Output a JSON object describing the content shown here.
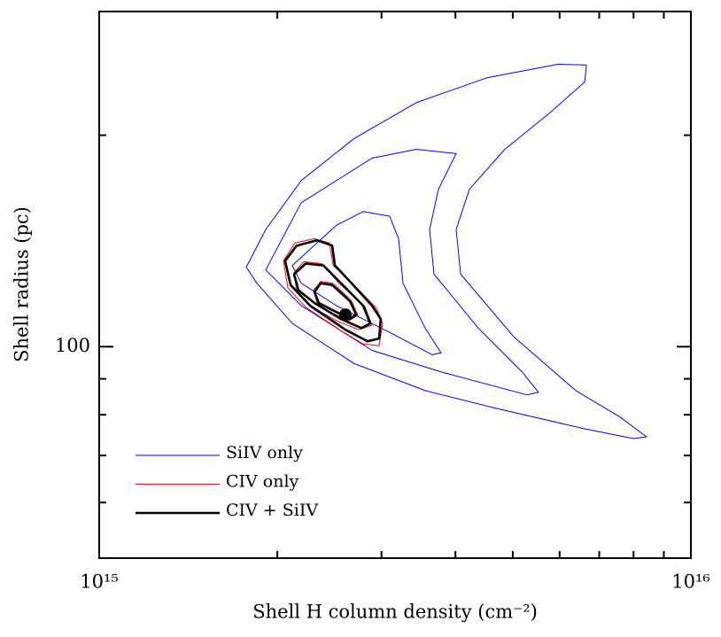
{
  "chart_data": {
    "type": "contour",
    "xlabel": "Shell H column density (cm⁻²)",
    "ylabel": "Shell radius (pc)",
    "log_x": true,
    "log_y": true,
    "xlim": [
      1000000000000000.0,
      1e+16
    ],
    "ylim": [
      50,
      300
    ],
    "xticks": [
      {
        "value": 1000000000000000.0,
        "label": "10¹⁵"
      },
      {
        "value": 1e+16,
        "label": "10¹⁶"
      }
    ],
    "xminorticks": [
      2000000000000000.0,
      3000000000000000.0,
      4000000000000000.0,
      5000000000000000.0,
      6000000000000000.0,
      7000000000000000.0,
      8000000000000000.0,
      9000000000000000.0
    ],
    "yticks": [
      100
    ],
    "yminorticks": [
      60,
      70,
      80,
      90,
      200
    ],
    "legend": "lower left",
    "best_fit": {
      "x": 2607000000000000.0,
      "y": 111.1,
      "color": "#000000"
    },
    "series": [
      {
        "name": "SiIV only",
        "color": "#0000ff",
        "width": 1,
        "contours": [
          {
            "x": [
              1773000000000000.0,
              1912000000000000.0,
              2195000000000000.0,
              2698000000000000.0,
              3435000000000000.0,
              4525000000000000.0,
              5963000000000000.0,
              6660000000000000.0,
              6614000000000000.0,
              5761000000000000.0,
              4849000000000000.0,
              4223000000000000.0,
              4012000000000000.0,
              4082000000000000.0,
              5019000000000000.0,
              6390000000000000.0,
              7591000000000000.0,
              8417000000000000.0,
              7994000000000000.0,
              6614000000000000.0,
              4685000000000000.0,
              3556000000000000.0,
              2698000000000000.0,
              2120000000000000.0,
              1847000000000000.0
            ],
            "y": [
              129.8,
              146.8,
              172.4,
              197.9,
              222.5,
              241.5,
              252.4,
              251.7,
              238.1,
              214.8,
              191.0,
              167.5,
              146.8,
              126.8,
              103.3,
              86.6,
              79.4,
              74.4,
              74.0,
              76.4,
              81.7,
              86.6,
              94.6,
              107.9,
              123.1
            ]
          },
          {
            "x": [
              1912000000000000.0,
              2195000000000000.0,
              2891000000000000.0,
              3435000000000000.0,
              4012000000000000.0,
              3744000000000000.0,
              3617000000000000.0,
              3680000000000000.0,
              4372000000000000.0,
              5195000000000000.0,
              5527000000000000.0,
              5286000000000000.0,
              3809000000000000.0,
              2891000000000000.0,
              2195000000000000.0
            ],
            "y": [
              128.6,
              160.3,
              185.5,
              191.0,
              188.3,
              167.5,
              146.8,
              126.8,
              106.3,
              91.9,
              86.1,
              85.4,
              91.9,
              98.8,
              114.4
            ]
          },
          {
            "x": [
              2120000000000000.0,
              2518000000000000.0,
              2793000000000000.0,
              3097000000000000.0,
              3206000000000000.0,
              3262000000000000.0,
              3556000000000000.0,
              3783000000000000.0,
              3655000000000000.0,
              3097000000000000.0,
              2518000000000000.0,
              2195000000000000.0
            ],
            "y": [
              130.5,
              148.9,
              155.7,
              153.4,
              142.5,
              123.1,
              106.3,
              98.0,
              97.4,
              104.8,
              114.4,
              123.1
            ]
          }
        ]
      },
      {
        "name": "CIV only",
        "color": "#ff0000",
        "width": 1,
        "contours": [
          {
            "x": [
              2048000000000000.0,
              2142000000000000.0,
              2311000000000000.0,
              2450000000000000.0,
              2485000000000000.0,
              2680000000000000.0,
              2942000000000000.0,
              3013000000000000.0,
              2972000000000000.0,
              2793000000000000.0,
              2563000000000000.0,
              2233000000000000.0,
              2084000000000000.0
            ],
            "y": [
              132.5,
              140.5,
              142.5,
              140.5,
              130.5,
              123.1,
              113.4,
              107.9,
              100.3,
              100.9,
              105.4,
              113.8,
              121.3
            ]
          },
          {
            "x": [
              2135000000000000.0,
              2217000000000000.0,
              2375000000000000.0,
              2545000000000000.0,
              2813000000000000.0,
              2891000000000000.0,
              2746000000000000.0,
              2518000000000000.0,
              2272000000000000.0,
              2157000000000000.0
            ],
            "y": [
              127.5,
              132.1,
              131.3,
              123.1,
              114.1,
              107.3,
              105.7,
              108.9,
              114.4,
              119.6
            ]
          },
          {
            "x": [
              2303000000000000.0,
              2367000000000000.0,
              2485000000000000.0,
              2671000000000000.0,
              2736000000000000.0,
              2644000000000000.0,
              2450000000000000.0,
              2335000000000000.0
            ],
            "y": [
              120.3,
              123.8,
              123.1,
              116.1,
              110.8,
              108.9,
              112.1,
              115.4
            ]
          }
        ]
      },
      {
        "name": "CIV + SiIV",
        "color": "#000000",
        "width": 2.6,
        "contours": [
          {
            "x": [
              2062000000000000.0,
              2157000000000000.0,
              2335000000000000.0,
              2476000000000000.0,
              2502000000000000.0,
              2653000000000000.0,
              2891000000000000.0,
              2992000000000000.0,
              2972000000000000.0,
              2842000000000000.0,
              2607000000000000.0,
              2272000000000000.0,
              2106000000000000.0
            ],
            "y": [
              132.5,
              139.3,
              141.7,
              139.3,
              130.5,
              123.8,
              114.4,
              109.5,
              102.7,
              101.8,
              105.7,
              114.4,
              122.4
            ]
          },
          {
            "x": [
              2135000000000000.0,
              2233000000000000.0,
              2392000000000000.0,
              2563000000000000.0,
              2793000000000000.0,
              2871000000000000.0,
              2774000000000000.0,
              2563000000000000.0,
              2311000000000000.0,
              2172000000000000.0
            ],
            "y": [
              126.8,
              131.3,
              130.5,
              123.1,
              114.4,
              107.9,
              106.3,
              109.5,
              115.4,
              120.3
            ]
          },
          {
            "x": [
              2311000000000000.0,
              2367000000000000.0,
              2476000000000000.0,
              2653000000000000.0,
              2718000000000000.0,
              2653000000000000.0,
              2476000000000000.0,
              2351000000000000.0
            ],
            "y": [
              119.6,
              123.1,
              122.4,
              116.1,
              111.1,
              109.5,
              112.8,
              115.4
            ]
          }
        ]
      }
    ]
  }
}
